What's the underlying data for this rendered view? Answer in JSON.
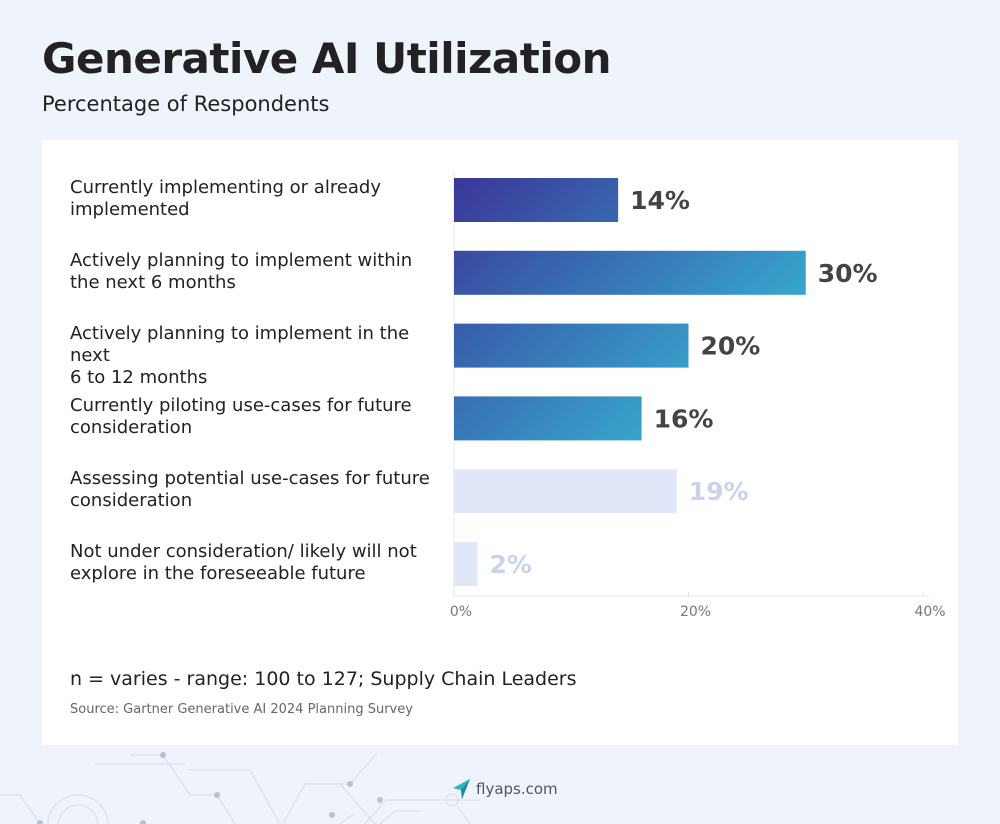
{
  "header": {
    "title": "Generative AI Utilization",
    "subtitle": "Percentage of Respondents"
  },
  "chart_data": {
    "type": "bar",
    "orientation": "horizontal",
    "title": "Generative AI Utilization",
    "subtitle": "Percentage of Respondents",
    "categories": [
      "Currently implementing or already implemented",
      "Actively planning to implement within the next 6 months",
      "Actively planning to implement in the next 6 to 12 months",
      "Currently piloting use-cases for future consideration",
      "Assessing potential use-cases for future consideration",
      "Not under consideration/ likely will not explore in the foreseeable future"
    ],
    "category_lines": [
      [
        "Currently implementing or already",
        "implemented"
      ],
      [
        "Actively planning to implement within",
        "the next 6 months"
      ],
      [
        "Actively planning to implement in the next",
        "6 to 12 months"
      ],
      [
        "Currently piloting use-cases for future",
        "consideration"
      ],
      [
        "Assessing potential use-cases for future",
        "consideration"
      ],
      [
        "Not under consideration/ likely will not",
        "explore in the foreseeable future"
      ]
    ],
    "values": [
      14,
      30,
      20,
      16,
      19,
      2
    ],
    "data_labels": [
      "14%",
      "30%",
      "20%",
      "16%",
      "19%",
      "2%"
    ],
    "highlighted": [
      true,
      true,
      true,
      true,
      false,
      false
    ],
    "xlim": [
      0,
      40
    ],
    "xticks": [
      "0%",
      "20%",
      "40%"
    ],
    "grid": false,
    "colors": {
      "gradient_start": "#3a3497",
      "gradient_end": "#36b9d6",
      "muted_bar": "#dfe7f8",
      "muted_label": "#c8d3ec",
      "label": "#444444"
    }
  },
  "footnote": {
    "note": "n = varies - range: 100 to 127; Supply Chain Leaders",
    "source": "Source: Gartner Generative AI 2024 Planning Survey"
  },
  "footer": {
    "logo_text": "flyaps.com"
  }
}
